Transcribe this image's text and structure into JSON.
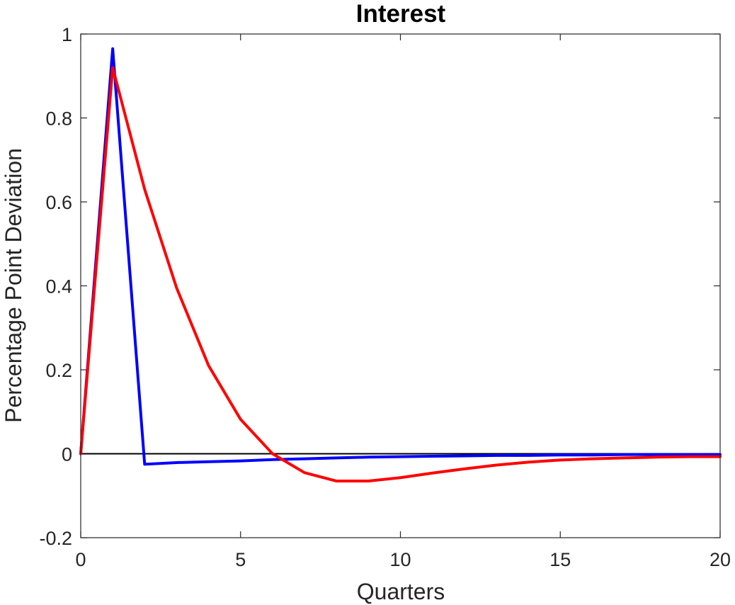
{
  "chart_data": {
    "type": "line",
    "title": "Interest",
    "xlabel": "Quarters",
    "ylabel": "Percentage Point Deviation",
    "xlim": [
      0,
      20
    ],
    "ylim": [
      -0.2,
      1
    ],
    "x_ticks": [
      0,
      5,
      10,
      15,
      20
    ],
    "x_tick_labels": [
      "0",
      "5",
      "10",
      "15",
      "20"
    ],
    "y_ticks": [
      -0.2,
      0,
      0.2,
      0.4,
      0.6,
      0.8,
      1
    ],
    "y_tick_labels": [
      "-0.2",
      "0",
      "0.2",
      "0.4",
      "0.6",
      "0.8",
      "1"
    ],
    "grid": false,
    "legend": "none",
    "reference_line": {
      "y": 0,
      "color": "#000000"
    },
    "x": [
      0,
      1,
      2,
      3,
      4,
      5,
      6,
      7,
      8,
      9,
      10,
      11,
      12,
      13,
      14,
      15,
      16,
      17,
      18,
      19,
      20
    ],
    "series": [
      {
        "color": "#0000ff",
        "values": [
          0,
          0.965,
          -0.025,
          -0.021,
          -0.019,
          -0.017,
          -0.014,
          -0.012,
          -0.01,
          -0.008,
          -0.007,
          -0.006,
          -0.005,
          -0.004,
          -0.004,
          -0.003,
          -0.003,
          -0.002,
          -0.002,
          -0.002,
          -0.002
        ]
      },
      {
        "color": "#ff0000",
        "values": [
          0,
          0.92,
          0.63,
          0.395,
          0.21,
          0.082,
          0.0,
          -0.045,
          -0.065,
          -0.065,
          -0.057,
          -0.046,
          -0.036,
          -0.027,
          -0.02,
          -0.015,
          -0.012,
          -0.01,
          -0.008,
          -0.007,
          -0.007
        ]
      }
    ]
  }
}
